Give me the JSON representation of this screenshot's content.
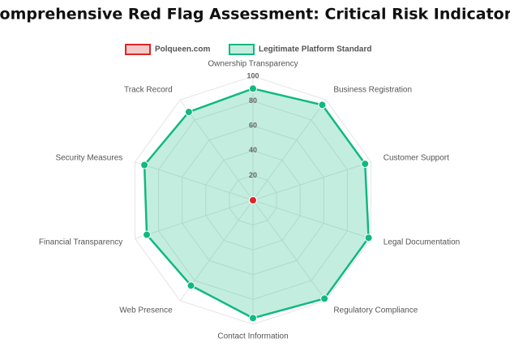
{
  "chart_data": {
    "type": "radar",
    "title": "Comprehensive Red Flag Assessment: Critical Risk Indicators",
    "categories": [
      "Ownership Transparency",
      "Business Registration",
      "Customer Support",
      "Legal Documentation",
      "Regulatory Compliance",
      "Contact Information",
      "Web Presence",
      "Financial Transparency",
      "Security Measures",
      "Track Record"
    ],
    "series": [
      {
        "name": "Polqueen.com",
        "color": "#dc2626",
        "values": [
          0,
          0,
          0,
          0,
          0,
          0,
          0,
          0,
          0,
          0
        ]
      },
      {
        "name": "Legitimate Platform Standard",
        "color": "#10b981",
        "values": [
          90,
          95,
          95,
          98,
          98,
          95,
          85,
          90,
          92,
          88
        ]
      }
    ],
    "ylim": [
      0,
      100
    ],
    "yticks": [
      20,
      40,
      60,
      80,
      100
    ],
    "grid": true,
    "legend": "top"
  }
}
